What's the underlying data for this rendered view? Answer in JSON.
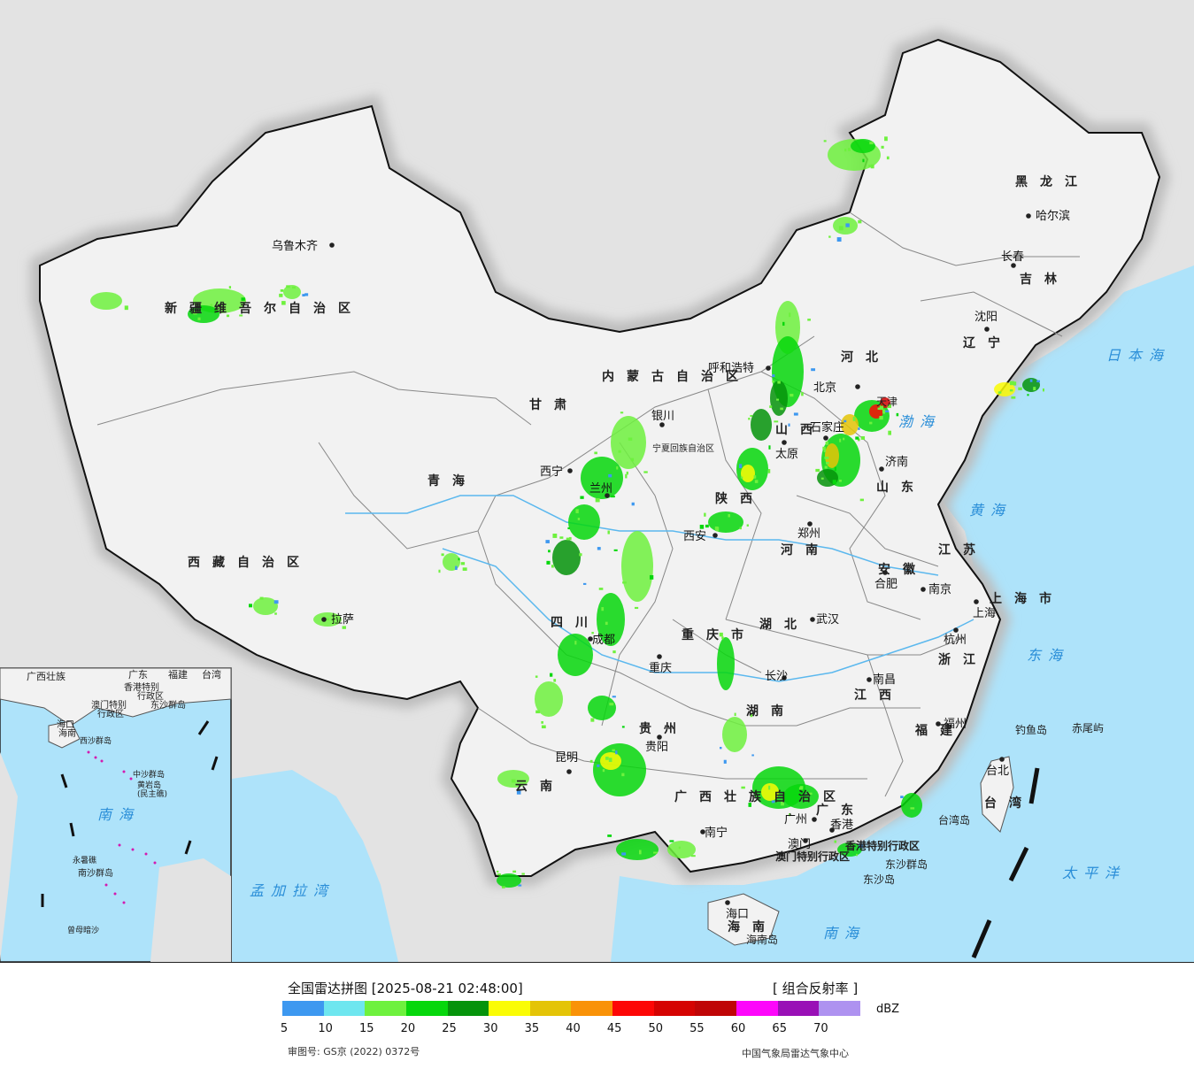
{
  "map": {
    "provinces": [
      {
        "id": "xinjiang",
        "name": "新疆维吾尔自治区"
      },
      {
        "id": "xizang",
        "name": "西藏自治区"
      },
      {
        "id": "qinghai",
        "name": "青海"
      },
      {
        "id": "gansu",
        "name": "甘肃"
      },
      {
        "id": "neimenggu",
        "name": "内蒙古自治区"
      },
      {
        "id": "heilongjiang",
        "name": "黑龙江"
      },
      {
        "id": "jilin",
        "name": "吉林"
      },
      {
        "id": "liaoning",
        "name": "辽宁"
      },
      {
        "id": "hebei",
        "name": "河北"
      },
      {
        "id": "shanxi",
        "name": "山西"
      },
      {
        "id": "shandong",
        "name": "山东"
      },
      {
        "id": "henan",
        "name": "河南"
      },
      {
        "id": "shaanxi",
        "name": "陕西"
      },
      {
        "id": "ningxia",
        "name": "宁夏回族自治区"
      },
      {
        "id": "sichuan",
        "name": "四川"
      },
      {
        "id": "chongqing",
        "name": "重庆市"
      },
      {
        "id": "hubei",
        "name": "湖北"
      },
      {
        "id": "anhui",
        "name": "安徽"
      },
      {
        "id": "jiangsu",
        "name": "江苏"
      },
      {
        "id": "shanghai",
        "name": "上海市"
      },
      {
        "id": "zhejiang",
        "name": "浙江"
      },
      {
        "id": "jiangxi",
        "name": "江西"
      },
      {
        "id": "hunan",
        "name": "湖南"
      },
      {
        "id": "fujian",
        "name": "福建"
      },
      {
        "id": "guizhou",
        "name": "贵州"
      },
      {
        "id": "yunnan",
        "name": "云南"
      },
      {
        "id": "guangxi",
        "name": "广西壮族自治区"
      },
      {
        "id": "guangdong",
        "name": "广东"
      },
      {
        "id": "hainan",
        "name": "海南"
      },
      {
        "id": "taiwan",
        "name": "台湾"
      },
      {
        "id": "tianjin",
        "name": "天津"
      },
      {
        "id": "hk",
        "name": "香港特别行政区"
      },
      {
        "id": "macao",
        "name": "澳门特别行政区"
      }
    ],
    "cities": [
      {
        "id": "urumqi",
        "name": "乌鲁木齐"
      },
      {
        "id": "lhasa",
        "name": "拉萨"
      },
      {
        "id": "xining",
        "name": "西宁"
      },
      {
        "id": "lanzhou",
        "name": "兰州"
      },
      {
        "id": "yinchuan",
        "name": "银川"
      },
      {
        "id": "hohhot",
        "name": "呼和浩特"
      },
      {
        "id": "harbin",
        "name": "哈尔滨"
      },
      {
        "id": "changchun",
        "name": "长春"
      },
      {
        "id": "shenyang",
        "name": "沈阳"
      },
      {
        "id": "beijing",
        "name": "北京"
      },
      {
        "id": "shijiazhuang",
        "name": "石家庄"
      },
      {
        "id": "taiyuan",
        "name": "太原"
      },
      {
        "id": "jinan",
        "name": "济南"
      },
      {
        "id": "zhengzhou",
        "name": "郑州"
      },
      {
        "id": "xian",
        "name": "西安"
      },
      {
        "id": "chengdu",
        "name": "成都"
      },
      {
        "id": "chongqing_c",
        "name": "重庆"
      },
      {
        "id": "wuhan",
        "name": "武汉"
      },
      {
        "id": "hefei",
        "name": "合肥"
      },
      {
        "id": "nanjing",
        "name": "南京"
      },
      {
        "id": "shanghai_c",
        "name": "上海"
      },
      {
        "id": "hangzhou",
        "name": "杭州"
      },
      {
        "id": "nanchang",
        "name": "南昌"
      },
      {
        "id": "changsha",
        "name": "长沙"
      },
      {
        "id": "fuzhou",
        "name": "福州"
      },
      {
        "id": "guiyang",
        "name": "贵阳"
      },
      {
        "id": "kunming",
        "name": "昆明"
      },
      {
        "id": "nanning",
        "name": "南宁"
      },
      {
        "id": "guangzhou",
        "name": "广州"
      },
      {
        "id": "hongkong",
        "name": "香港"
      },
      {
        "id": "macau",
        "name": "澳门"
      },
      {
        "id": "haikou",
        "name": "海口"
      },
      {
        "id": "taibei",
        "name": "台北"
      }
    ],
    "seas": [
      {
        "id": "bohai",
        "name": "渤海"
      },
      {
        "id": "huanghai",
        "name": "黄海"
      },
      {
        "id": "donghai",
        "name": "东海"
      },
      {
        "id": "nanhai",
        "name": "南海"
      },
      {
        "id": "riben",
        "name": "日本海"
      },
      {
        "id": "taipingyang",
        "name": "太平洋"
      },
      {
        "id": "mengjiala",
        "name": "孟加拉湾"
      }
    ],
    "islands": [
      {
        "id": "diaoyu",
        "name": "钓鱼岛"
      },
      {
        "id": "chiwei",
        "name": "赤尾屿"
      },
      {
        "id": "taiwandao",
        "name": "台湾岛"
      },
      {
        "id": "dongsha",
        "name": "东沙群岛"
      },
      {
        "id": "dongshadao",
        "name": "东沙岛"
      },
      {
        "id": "hainandao",
        "name": "海南岛"
      }
    ],
    "inset": {
      "labels": [
        "广西壮族",
        "广东",
        "福建",
        "台湾",
        "香港特别",
        "行政区",
        "澳门特别",
        "行政区",
        "东沙群岛",
        "海口",
        "海南",
        "西沙群岛",
        "中沙群岛",
        "黄岩岛",
        "(民主礁)",
        "南海",
        "永暑礁",
        "南沙群岛",
        "曾母暗沙"
      ]
    }
  },
  "legend": {
    "title": "全国雷达拼图 [2025-08-21 02:48:00]",
    "product": "[ 组合反射率 ]",
    "unit": "dBZ",
    "ticks": [
      "5",
      "10",
      "15",
      "20",
      "25",
      "30",
      "35",
      "40",
      "45",
      "50",
      "55",
      "60",
      "65",
      "70"
    ],
    "colors": [
      "#3d98f0",
      "#6ee6ef",
      "#6ef13e",
      "#06d70c",
      "#05930b",
      "#fafc05",
      "#e4c407",
      "#f99208",
      "#fd0706",
      "#d50302",
      "#bf0506",
      "#fd06fb",
      "#9910b6",
      "#ae92f0"
    ],
    "review_no": "审图号: GS京 (2022) 0372号",
    "credit": "中国气象局雷达气象中心"
  }
}
